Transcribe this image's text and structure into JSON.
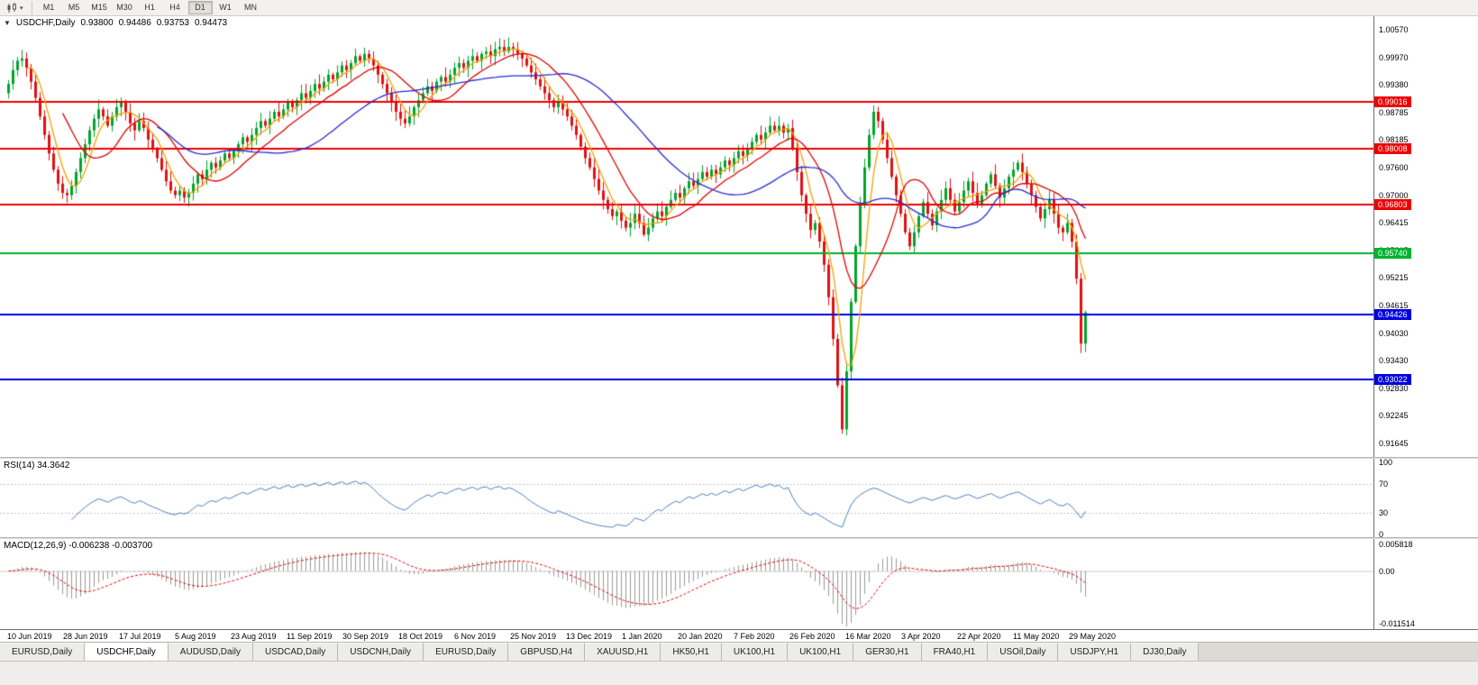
{
  "toolbar": {
    "timeframes": [
      "M1",
      "M5",
      "M15",
      "M30",
      "H1",
      "H4",
      "D1",
      "W1",
      "MN"
    ],
    "active_timeframe": "D1"
  },
  "main_chart": {
    "info": {
      "symbol": "USDCHF,Daily",
      "open": "0.93800",
      "high": "0.94486",
      "low": "0.93753",
      "close": "0.94473"
    },
    "y_axis_ticks": [
      "1.00570",
      "0.99970",
      "0.99380",
      "0.98785",
      "0.98185",
      "0.97600",
      "0.97000",
      "0.96415",
      "0.95815",
      "0.95215",
      "0.94615",
      "0.94030",
      "0.93430",
      "0.92830",
      "0.92245",
      "0.91645"
    ],
    "price_line_labels": [
      {
        "text": "0.99016",
        "color": "#ee0000"
      },
      {
        "text": "0.98008",
        "color": "#ee0000"
      },
      {
        "text": "0.96803",
        "color": "#ee0000"
      },
      {
        "text": "0.95740",
        "color": "#00b32c"
      },
      {
        "text": "0.94426",
        "color": "#0000e0"
      },
      {
        "text": "0.93022",
        "color": "#0000e0"
      }
    ],
    "x_axis_ticks": [
      "10 Jun 2019",
      "28 Jun 2019",
      "17 Jul 2019",
      "5 Aug 2019",
      "23 Aug 2019",
      "11 Sep 2019",
      "30 Sep 2019",
      "18 Oct 2019",
      "6 Nov 2019",
      "25 Nov 2019",
      "13 Dec 2019",
      "1 Jan 2020",
      "20 Jan 2020",
      "7 Feb 2020",
      "26 Feb 2020",
      "16 Mar 2020",
      "3 Apr 2020",
      "22 Apr 2020",
      "11 May 2020",
      "29 May 2020"
    ]
  },
  "rsi_panel": {
    "label": "RSI(14) 34.3642",
    "y_ticks": [
      "100",
      "70",
      "30",
      "0"
    ]
  },
  "macd_panel": {
    "label": "MACD(12,26,9) -0.006238 -0.003700",
    "y_ticks": [
      "0.005818",
      "0.00",
      "-0.011514"
    ]
  },
  "tabs": [
    "EURUSD,Daily",
    "USDCHF,Daily",
    "AUDUSD,Daily",
    "USDCAD,Daily",
    "USDCNH,Daily",
    "EURUSD,Daily",
    "GBPUSD,H4",
    "XAUUSD,H1",
    "HK50,H1",
    "UK100,H1",
    "UK100,H1",
    "GER30,H1",
    "FRA40,H1",
    "USOil,Daily",
    "USDJPY,H1",
    "DJ30,Daily"
  ],
  "active_tab_index": 1,
  "chart_data": {
    "type": "candlestick",
    "symbol": "USDCHF",
    "timeframe": "Daily",
    "current_bar": {
      "open": 0.938,
      "high": 0.94486,
      "low": 0.93753,
      "close": 0.94473
    },
    "price_axis": {
      "min": 0.91645,
      "max": 1.0057
    },
    "closes": [
      0.994,
      0.997,
      0.999,
      0.9995,
      0.9975,
      0.9945,
      0.991,
      0.987,
      0.983,
      0.979,
      0.9755,
      0.9725,
      0.9705,
      0.97,
      0.972,
      0.975,
      0.978,
      0.981,
      0.984,
      0.9865,
      0.9885,
      0.987,
      0.985,
      0.987,
      0.989,
      0.99,
      0.988,
      0.9855,
      0.984,
      0.986,
      0.9845,
      0.982,
      0.98,
      0.978,
      0.9755,
      0.973,
      0.971,
      0.97,
      0.971,
      0.9695,
      0.9705,
      0.9725,
      0.9745,
      0.9735,
      0.9755,
      0.977,
      0.976,
      0.9775,
      0.979,
      0.978,
      0.9795,
      0.981,
      0.9825,
      0.9815,
      0.983,
      0.9845,
      0.986,
      0.985,
      0.9865,
      0.988,
      0.987,
      0.9885,
      0.99,
      0.989,
      0.9905,
      0.992,
      0.991,
      0.9925,
      0.994,
      0.993,
      0.9945,
      0.996,
      0.995,
      0.9965,
      0.998,
      0.997,
      0.9985,
      1.0,
      0.999,
      1.0005,
      0.9995,
      0.998,
      0.996,
      0.994,
      0.992,
      0.99,
      0.988,
      0.9865,
      0.9855,
      0.987,
      0.989,
      0.9905,
      0.992,
      0.9935,
      0.9925,
      0.9945,
      0.9955,
      0.9945,
      0.996,
      0.9975,
      0.9985,
      0.9975,
      0.999,
      1.0,
      0.999,
      1.0005,
      1.001,
      1.0,
      1.0015,
      1.002,
      1.001,
      1.002,
      1.0015,
      1.0005,
      0.9995,
      0.998,
      0.9965,
      0.995,
      0.9935,
      0.992,
      0.9905,
      0.989,
      0.99,
      0.9885,
      0.987,
      0.985,
      0.983,
      0.9805,
      0.978,
      0.976,
      0.9735,
      0.971,
      0.969,
      0.967,
      0.9655,
      0.9665,
      0.9645,
      0.963,
      0.964,
      0.966,
      0.964,
      0.9615,
      0.963,
      0.965,
      0.9665,
      0.9655,
      0.9675,
      0.969,
      0.9705,
      0.9695,
      0.9715,
      0.973,
      0.972,
      0.9735,
      0.975,
      0.974,
      0.9755,
      0.9745,
      0.976,
      0.9775,
      0.9765,
      0.978,
      0.9795,
      0.9785,
      0.98,
      0.9815,
      0.983,
      0.982,
      0.9835,
      0.985,
      0.984,
      0.985,
      0.9835,
      0.9845,
      0.98,
      0.975,
      0.97,
      0.966,
      0.9625,
      0.964,
      0.96,
      0.955,
      0.948,
      0.939,
      0.929,
      0.9195,
      0.932,
      0.947,
      0.959,
      0.968,
      0.976,
      0.983,
      0.988,
      0.986,
      0.982,
      0.978,
      0.974,
      0.97,
      0.966,
      0.962,
      0.959,
      0.962,
      0.9655,
      0.9685,
      0.966,
      0.9635,
      0.9665,
      0.969,
      0.9715,
      0.969,
      0.9665,
      0.9685,
      0.971,
      0.973,
      0.9705,
      0.968,
      0.97,
      0.9725,
      0.9745,
      0.972,
      0.9695,
      0.9715,
      0.974,
      0.9755,
      0.977,
      0.975,
      0.9725,
      0.97,
      0.9675,
      0.965,
      0.967,
      0.969,
      0.966,
      0.963,
      0.962,
      0.964,
      0.96,
      0.952,
      0.938,
      0.9447
    ],
    "horizontal_lines": [
      {
        "price": 0.99016,
        "color": "#ee0000",
        "width": 2
      },
      {
        "price": 0.98008,
        "color": "#ee0000",
        "width": 2
      },
      {
        "price": 0.96803,
        "color": "#ee0000",
        "width": 2
      },
      {
        "price": 0.9574,
        "color": "#00b32c",
        "width": 2
      },
      {
        "price": 0.94426,
        "color": "#0000e0",
        "width": 2
      },
      {
        "price": 0.93022,
        "color": "#0000e0",
        "width": 2
      }
    ],
    "moving_averages": [
      {
        "period": 5,
        "color": "#f5a000"
      },
      {
        "period": 13,
        "color": "#e00000"
      },
      {
        "period": 34,
        "color": "#2a2ad0"
      }
    ],
    "up_color": "#00a42a",
    "down_color": "#e01010",
    "rsi": {
      "period": 14,
      "last": 34.3642,
      "levels": [
        70,
        30
      ],
      "range": [
        0,
        100
      ],
      "color": "#4a7ebb"
    },
    "macd": {
      "fast": 12,
      "slow": 26,
      "signal": 9,
      "last": -0.006238,
      "signal_last": -0.0037,
      "range": [
        -0.011514,
        0.005818
      ],
      "histogram_color": "#9a9a9a",
      "signal_color": "#e00000"
    }
  }
}
